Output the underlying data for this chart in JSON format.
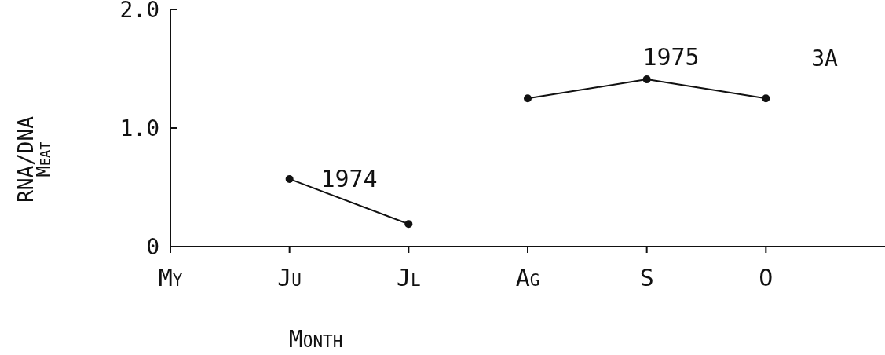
{
  "chart_data": {
    "type": "line",
    "xlabel": "Month",
    "ylabel": "RNA/DNA\nMeat",
    "categories": [
      "My",
      "Ju",
      "Jl",
      "Ag",
      "S",
      "O"
    ],
    "ylim": [
      0,
      2
    ],
    "yticks": [
      0,
      {
        "value": 1,
        "label": "1.0"
      },
      {
        "value": 2,
        "label": "2.0"
      }
    ],
    "marker": "circle",
    "grid": false,
    "series": [
      {
        "name": "1974",
        "color": "#111111",
        "values": [
          null,
          0.57,
          0.19,
          null,
          null,
          null
        ]
      },
      {
        "name": "1975",
        "color": "#111111",
        "values": [
          null,
          null,
          null,
          1.25,
          1.41,
          1.25
        ]
      }
    ],
    "annotations": [
      "3A"
    ]
  }
}
